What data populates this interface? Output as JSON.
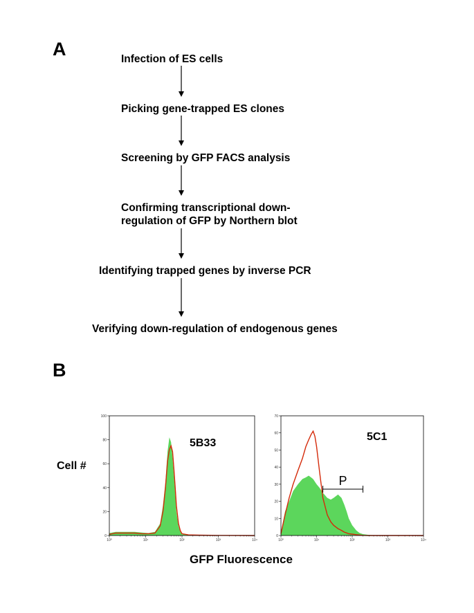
{
  "panel_a": {
    "label": "A",
    "steps": [
      {
        "text": "Infection of ES cells"
      },
      {
        "text": "Picking gene-trapped ES clones"
      },
      {
        "text": "Screening by GFP FACS analysis"
      },
      {
        "text": "Confirming transcriptional down-",
        "text2": "regulation of GFP by Northern blot"
      },
      {
        "text": "Identifying trapped genes by inverse PCR"
      },
      {
        "text": "Verifying down-regulation of  endogenous genes"
      }
    ]
  },
  "panel_b": {
    "label": "B",
    "ylabel": "Cell #",
    "xlabel": "GFP Fluorescence"
  },
  "colors": {
    "green_fill": "#5cd65c",
    "red_line": "#d42a0a",
    "text": "#000000"
  },
  "chart_data": [
    {
      "type": "area",
      "title": "5B33",
      "xscale": "log",
      "xlim": [
        1,
        10000
      ],
      "xticks": [
        "10⁰",
        "10¹",
        "10²",
        "10³",
        "10⁴"
      ],
      "ylim": [
        0,
        100
      ],
      "yticks": [
        "0",
        "20",
        "40",
        "60",
        "80",
        "100"
      ],
      "series": [
        {
          "name": "green",
          "style": "filled",
          "x": [
            1,
            1.5,
            2,
            3,
            5,
            8,
            12,
            18,
            25,
            30,
            35,
            40,
            45,
            50,
            55,
            60,
            65,
            70,
            80,
            90,
            100,
            150,
            300,
            1000,
            10000
          ],
          "y": [
            2,
            3,
            3,
            3,
            3,
            2.5,
            2,
            3,
            10,
            25,
            45,
            70,
            82,
            78,
            65,
            50,
            35,
            20,
            8,
            3,
            1,
            0.5,
            0.3,
            0.1,
            0
          ]
        },
        {
          "name": "red",
          "style": "line",
          "x": [
            1,
            1.5,
            2,
            3,
            5,
            8,
            12,
            18,
            25,
            30,
            35,
            40,
            45,
            50,
            55,
            60,
            65,
            70,
            80,
            90,
            100,
            150,
            300,
            1000,
            10000
          ],
          "y": [
            1,
            2,
            2,
            2,
            2,
            1.5,
            1.5,
            2,
            8,
            20,
            40,
            62,
            72,
            75,
            70,
            55,
            40,
            25,
            10,
            4,
            1.5,
            0.5,
            0.3,
            0.1,
            0
          ]
        }
      ]
    },
    {
      "type": "area",
      "title": "5C1",
      "annotation": "P",
      "gate": [
        15,
        200
      ],
      "xscale": "log",
      "xlim": [
        1,
        10000
      ],
      "xticks": [
        "10⁰",
        "10¹",
        "10²",
        "10³",
        "10⁴"
      ],
      "ylim": [
        0,
        70
      ],
      "yticks": [
        "0",
        "10",
        "20",
        "30",
        "40",
        "50",
        "60",
        "70"
      ],
      "series": [
        {
          "name": "green",
          "style": "filled",
          "x": [
            1,
            1.3,
            1.7,
            2.2,
            3,
            4,
            5,
            6,
            7,
            8,
            10,
            12,
            15,
            20,
            25,
            30,
            40,
            50,
            60,
            70,
            80,
            100,
            130,
            160,
            200,
            300,
            500,
            1000,
            10000
          ],
          "y": [
            2,
            14,
            20,
            26,
            30,
            33,
            34,
            35,
            34,
            33,
            30,
            28,
            25,
            22,
            21,
            22,
            24,
            22,
            18,
            14,
            10,
            6,
            3,
            1.5,
            0.8,
            0.3,
            0.1,
            0,
            0
          ]
        },
        {
          "name": "red",
          "style": "line",
          "x": [
            1,
            1.3,
            1.7,
            2.2,
            3,
            4,
            5,
            6,
            7,
            8,
            9,
            10,
            12,
            15,
            20,
            25,
            30,
            40,
            50,
            60,
            70,
            80,
            100,
            130,
            160,
            200,
            300,
            1000,
            10000
          ],
          "y": [
            1,
            12,
            22,
            30,
            38,
            45,
            52,
            56,
            59,
            61,
            58,
            52,
            38,
            22,
            12,
            8,
            6,
            4,
            3,
            2,
            1.5,
            1,
            0.8,
            0.5,
            0.3,
            0.1,
            0,
            0,
            0
          ]
        }
      ]
    }
  ]
}
